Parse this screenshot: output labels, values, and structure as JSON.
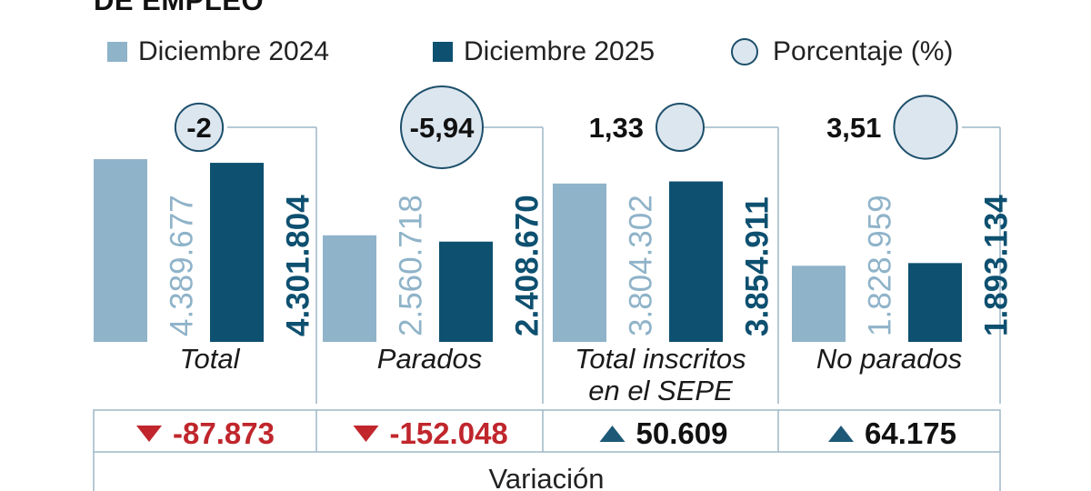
{
  "title": "DE EMPLEO",
  "legend": {
    "series1": "Diciembre 2024",
    "series2": "Diciembre 2025",
    "percent": "Porcentaje (%)"
  },
  "colors": {
    "series1": "#8fb3c9",
    "series2": "#0e5070",
    "circle_fill": "#dce6ef",
    "circle_stroke": "#1d4f6b",
    "down": "#c0262c",
    "up": "#1d5877",
    "grid": "#9db7c7"
  },
  "variation_label": "Variación",
  "chart_data": {
    "type": "bar",
    "title": "DE EMPLEO",
    "categories": [
      "Total",
      "Parados",
      "Total inscritos en el SEPE",
      "No parados"
    ],
    "category_lines": [
      [
        "Total"
      ],
      [
        "Parados"
      ],
      [
        "Total inscritos",
        "en el SEPE"
      ],
      [
        "No parados"
      ]
    ],
    "series": [
      {
        "name": "Diciembre 2024",
        "values": [
          4389677,
          2560718,
          3804302,
          1828959
        ],
        "labels": [
          "4.389.677",
          "2.560.718",
          "3.804.302",
          "1.828.959"
        ]
      },
      {
        "name": "Diciembre 2025",
        "values": [
          4301804,
          2408670,
          3854911,
          1893134
        ],
        "labels": [
          "4.301.804",
          "2.408.670",
          "3.854.911",
          "1.893.134"
        ]
      }
    ],
    "percent_change": [
      -2,
      -5.94,
      1.33,
      3.51
    ],
    "percent_labels": [
      "-2",
      "-5,94",
      "1,33",
      "3,51"
    ],
    "variation": [
      -87873,
      -152048,
      50609,
      64175
    ],
    "variation_labels": [
      "-87.873",
      "-152.048",
      "50.609",
      "64.175"
    ],
    "ylim": [
      0,
      4500000
    ],
    "xlabel": "",
    "ylabel": ""
  }
}
